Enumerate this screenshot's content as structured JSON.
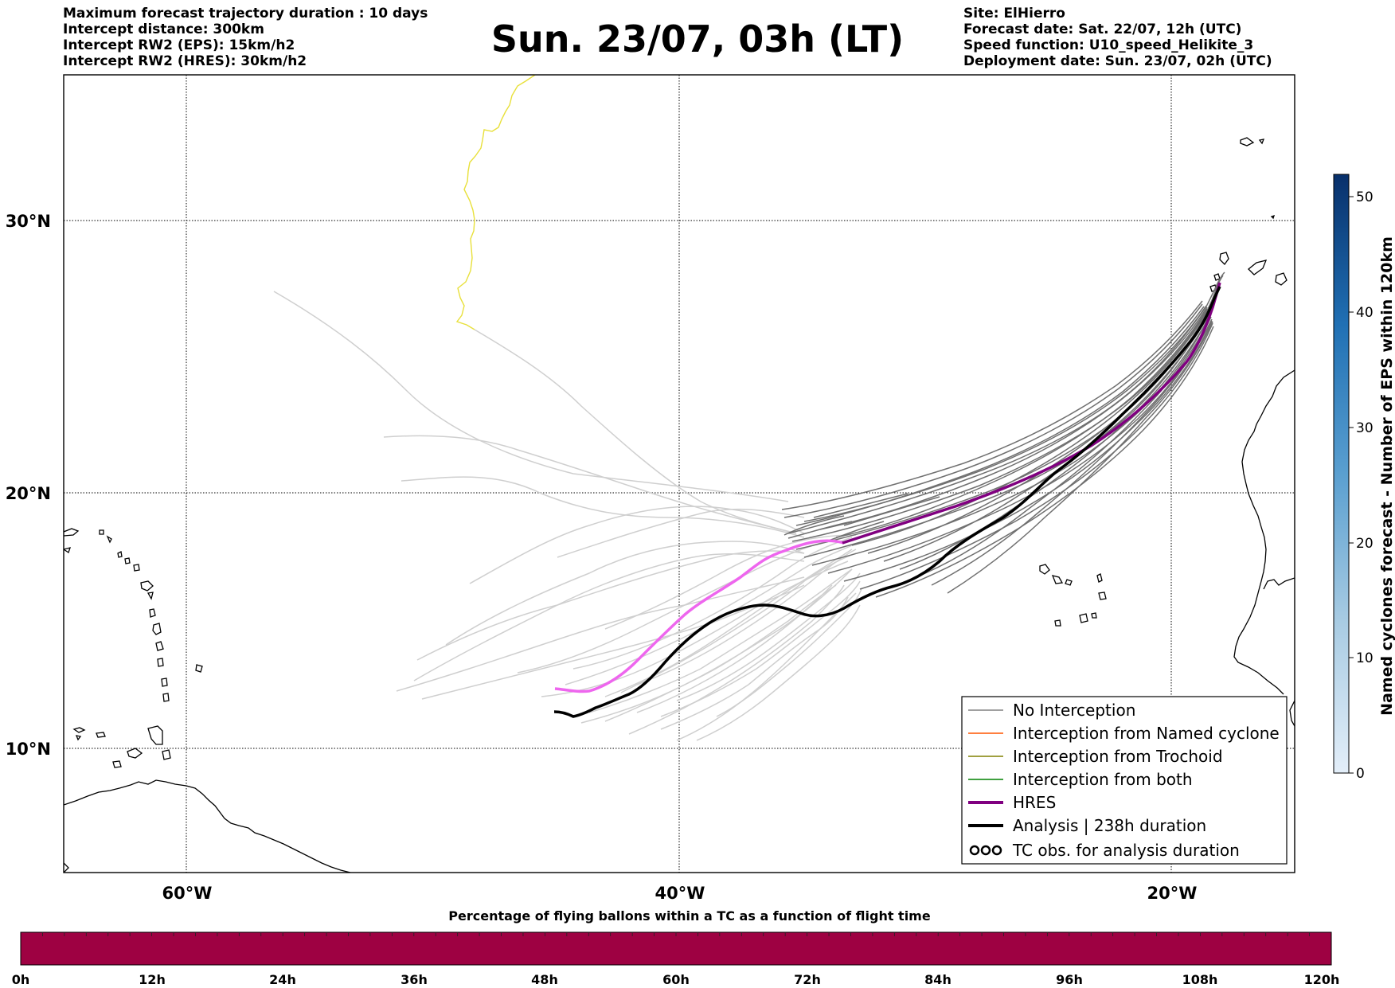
{
  "header": {
    "title": "Sun. 23/07, 03h (LT)",
    "left_lines": [
      "Maximum forecast trajectory duration : 10 days",
      "Intercept distance: 300km",
      "Intercept RW2 (EPS):  15km/h2",
      "Intercept RW2 (HRES): 30km/h2"
    ],
    "right_lines": [
      "Site: ElHierro",
      "Forecast date: Sat. 22/07, 12h (UTC)",
      "Speed function: U10_speed_Helikite_3",
      "Deployment date: Sun. 23/07, 02h (UTC)"
    ]
  },
  "map": {
    "lon_ticks": [
      "60°W",
      "40°W",
      "20°W"
    ],
    "lat_ticks": [
      "30°N",
      "20°N",
      "10°N"
    ]
  },
  "legend": {
    "items": [
      {
        "label": "No Interception",
        "color": "#808080"
      },
      {
        "label": "Interception from Named cyclone",
        "color": "#ff5500"
      },
      {
        "label": "Interception from Trochoid",
        "color": "#808000"
      },
      {
        "label": "Interception from both",
        "color": "#008000"
      },
      {
        "label": "HRES",
        "color": "#800080"
      },
      {
        "label": "Analysis | 238h duration",
        "color": "#000000"
      },
      {
        "label": "TC obs. for analysis duration",
        "color": "#000000"
      }
    ]
  },
  "colorbar_right": {
    "label": "Named cyclones forecast - Number of EPS within 120km",
    "ticks": [
      "0",
      "10",
      "20",
      "30",
      "40",
      "50"
    ],
    "range": [
      0,
      52
    ],
    "color_low": "#e3eef9",
    "color_high": "#08306b"
  },
  "colorbar_bottom": {
    "title": "Percentage of flying ballons within a TC as a function of flight time",
    "ticks": [
      "0h",
      "12h",
      "24h",
      "36h",
      "48h",
      "60h",
      "72h",
      "84h",
      "96h",
      "108h",
      "120h"
    ],
    "fill_color": "#9e0142"
  }
}
